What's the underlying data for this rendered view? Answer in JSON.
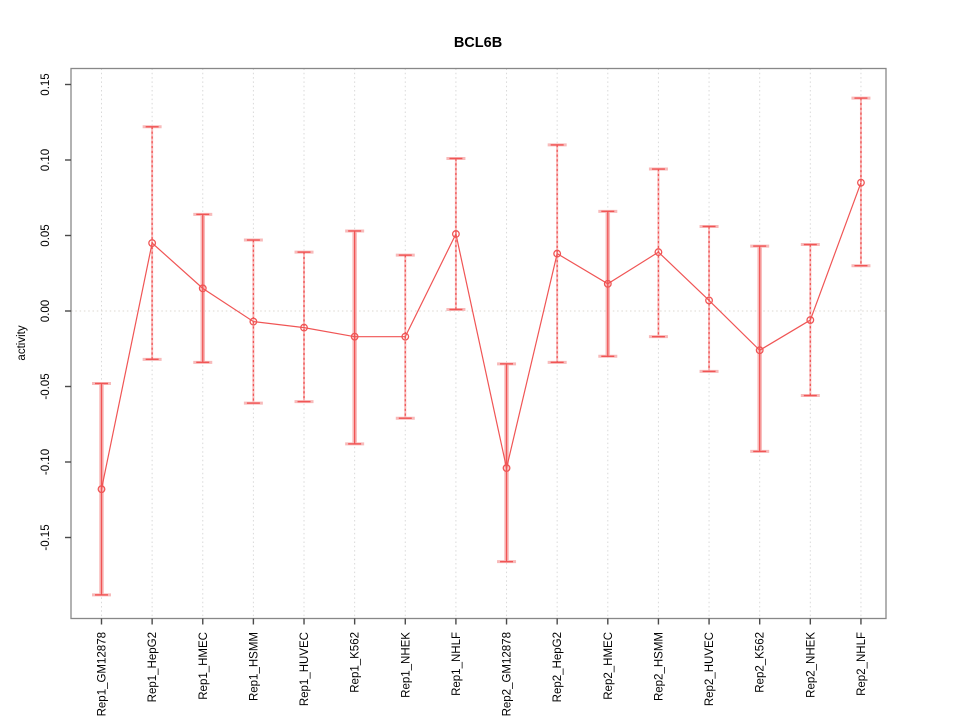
{
  "chart_data": {
    "type": "line",
    "title": "BCL6B",
    "xlabel": "",
    "ylabel": "activity",
    "ylim": [
      -0.203,
      0.161
    ],
    "grid": "vertical dotted gridline at each category; horizontal dotted line at y=0; outer box frame",
    "legend": "none",
    "yticks": [
      0.15,
      0.1,
      0.05,
      0.0,
      -0.05,
      -0.1,
      -0.15
    ],
    "ytick_labels": [
      "0.15",
      "0.10",
      "0.05",
      "0.00",
      "-0.05",
      "-0.10",
      "-0.15"
    ],
    "categories": [
      "Rep1_GM12878",
      "Rep1_HepG2",
      "Rep1_HMEC",
      "Rep1_HSMM",
      "Rep1_HUVEC",
      "Rep1_K562",
      "Rep1_NHEK",
      "Rep1_NHLF",
      "Rep2_GM12878",
      "Rep2_HepG2",
      "Rep2_HMEC",
      "Rep2_HSMM",
      "Rep2_HUVEC",
      "Rep2_K562",
      "Rep2_NHEK",
      "Rep2_NHLF"
    ],
    "series": [
      {
        "name": "activity",
        "marker": "open-circle",
        "values": [
          -0.118,
          0.045,
          0.015,
          -0.007,
          -0.011,
          -0.017,
          -0.017,
          0.051,
          -0.104,
          0.038,
          0.018,
          0.039,
          0.007,
          -0.026,
          -0.006,
          0.085
        ],
        "err_lo": [
          -0.188,
          -0.032,
          -0.034,
          -0.061,
          -0.06,
          -0.088,
          -0.071,
          0.001,
          -0.166,
          -0.034,
          -0.03,
          -0.017,
          -0.04,
          -0.093,
          -0.056,
          0.03
        ],
        "err_hi": [
          -0.048,
          0.122,
          0.064,
          0.047,
          0.039,
          0.053,
          0.037,
          0.101,
          -0.035,
          0.11,
          0.066,
          0.094,
          0.056,
          0.043,
          0.044,
          0.141
        ],
        "solid_band": [
          true,
          false,
          true,
          false,
          false,
          true,
          false,
          false,
          true,
          false,
          true,
          false,
          false,
          true,
          false,
          false
        ]
      }
    ],
    "colors": {
      "series_red": "#f05555",
      "band_pink": "#f8baba",
      "gridline": "#d9d9d9",
      "zero_line": "#dcd8d1",
      "frame": "#888888",
      "tick": "#4a4a4a",
      "text": "#000000",
      "background": "#ffffff"
    }
  }
}
